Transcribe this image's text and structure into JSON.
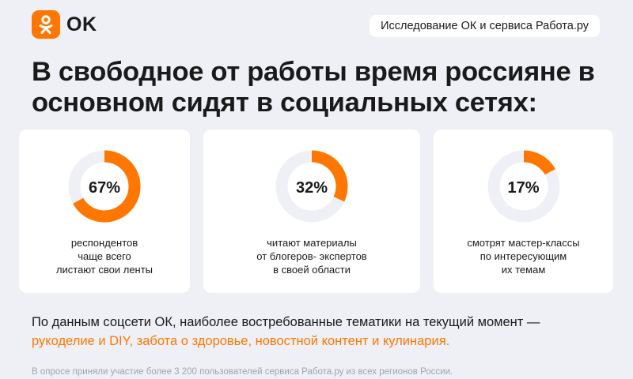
{
  "brand": {
    "name": "OK",
    "accent_color": "#ff7700",
    "icon": "ok-logo-icon"
  },
  "header_pill": "Исследование ОК и сервиса Работа.ру",
  "headline": "В свободное от работы время россияне в основном сидят в социальных сетях:",
  "chart_data": {
    "type": "pie",
    "donut": true,
    "items": [
      {
        "value": 67,
        "label": "67%",
        "caption": "респондентов\nчаще всего\nлистают свои ленты"
      },
      {
        "value": 32,
        "label": "32%",
        "caption": "читают материалы\nот блогеров- экспертов\nв своей области"
      },
      {
        "value": 17,
        "label": "17%",
        "caption": "смотрят мастер-классы\nпо интересующим\nих темам"
      }
    ],
    "colors": {
      "fill": "#ff7700",
      "track": "#eef0f6"
    }
  },
  "footer": {
    "lead": "По данным соцсети ОК, наиболее востребованные тематики на текущий момент —",
    "highlight": "рукоделие и DIY, забота о здоровье, новостной контент и кулинария."
  },
  "footnote": "В опросе приняли участие более 3 200 пользователей сервиса Работа.ру из всех регионов России."
}
